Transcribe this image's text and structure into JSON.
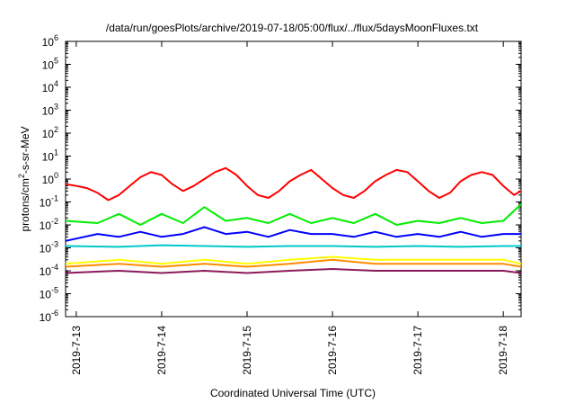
{
  "chart_data": {
    "type": "line",
    "title": "/data/run/goesPlots/archive/2019-07-18/05:00/flux/../flux/5daysMoonFluxes.txt",
    "xlabel": "Coordinated Universal Time (UTC)",
    "ylabel": "protons/cm2-s-sr-MeV",
    "ylabel_parts": {
      "pre": "protons/cm",
      "sup": "2",
      "post": "-s-sr-MeV"
    },
    "yscale": "log",
    "ylim": [
      1e-06,
      1000000.0
    ],
    "xlim": [
      "2019-07-12T21:00",
      "2019-07-18T05:00"
    ],
    "x_ticks": [
      "2019-7-13",
      "2019-7-14",
      "2019-7-15",
      "2019-7-16",
      "2019-7-17",
      "2019-7-18"
    ],
    "y_ticks": [
      {
        "base": "10",
        "exp": "6"
      },
      {
        "base": "10",
        "exp": "5"
      },
      {
        "base": "10",
        "exp": "4"
      },
      {
        "base": "10",
        "exp": "3"
      },
      {
        "base": "10",
        "exp": "2"
      },
      {
        "base": "10",
        "exp": "1"
      },
      {
        "base": "10",
        "exp": "0"
      },
      {
        "base": "10",
        "exp": "-1"
      },
      {
        "base": "10",
        "exp": "-2"
      },
      {
        "base": "10",
        "exp": "-3"
      },
      {
        "base": "10",
        "exp": "-4"
      },
      {
        "base": "10",
        "exp": "-5"
      },
      {
        "base": "10",
        "exp": "-6"
      }
    ],
    "grid": false,
    "legend": "none",
    "series": [
      {
        "color": "#ff0000",
        "x": [
          "2019-07-12T21:00",
          "2019-07-13T00:00",
          "2019-07-13T03:00",
          "2019-07-13T06:00",
          "2019-07-13T09:00",
          "2019-07-13T12:00",
          "2019-07-13T15:00",
          "2019-07-13T18:00",
          "2019-07-13T21:00",
          "2019-07-14T00:00",
          "2019-07-14T03:00",
          "2019-07-14T06:00",
          "2019-07-14T09:00",
          "2019-07-14T12:00",
          "2019-07-14T15:00",
          "2019-07-14T18:00",
          "2019-07-14T21:00",
          "2019-07-15T00:00",
          "2019-07-15T03:00",
          "2019-07-15T06:00",
          "2019-07-15T09:00",
          "2019-07-15T12:00",
          "2019-07-15T15:00",
          "2019-07-15T18:00",
          "2019-07-15T21:00",
          "2019-07-16T00:00",
          "2019-07-16T03:00",
          "2019-07-16T06:00",
          "2019-07-16T09:00",
          "2019-07-16T12:00",
          "2019-07-16T15:00",
          "2019-07-16T18:00",
          "2019-07-16T21:00",
          "2019-07-17T00:00",
          "2019-07-17T03:00",
          "2019-07-17T06:00",
          "2019-07-17T09:00",
          "2019-07-17T12:00",
          "2019-07-17T15:00",
          "2019-07-17T18:00",
          "2019-07-17T21:00",
          "2019-07-18T00:00",
          "2019-07-18T03:00",
          "2019-07-18T05:00"
        ],
        "values": [
          0.6,
          0.5,
          0.4,
          0.25,
          0.12,
          0.2,
          0.5,
          1.2,
          2.0,
          1.5,
          0.6,
          0.3,
          0.5,
          1.0,
          2.0,
          3.0,
          1.5,
          0.5,
          0.2,
          0.15,
          0.3,
          0.8,
          1.5,
          2.5,
          1.0,
          0.4,
          0.2,
          0.15,
          0.3,
          0.8,
          1.5,
          2.5,
          2.0,
          0.8,
          0.3,
          0.15,
          0.25,
          0.8,
          1.5,
          2.0,
          1.5,
          0.5,
          0.2,
          0.3
        ]
      },
      {
        "color": "#00ee00",
        "x": [
          "2019-07-12T21:00",
          "2019-07-13T06:00",
          "2019-07-13T12:00",
          "2019-07-13T18:00",
          "2019-07-14T00:00",
          "2019-07-14T06:00",
          "2019-07-14T12:00",
          "2019-07-14T18:00",
          "2019-07-15T00:00",
          "2019-07-15T06:00",
          "2019-07-15T12:00",
          "2019-07-15T18:00",
          "2019-07-16T00:00",
          "2019-07-16T06:00",
          "2019-07-16T12:00",
          "2019-07-16T18:00",
          "2019-07-17T00:00",
          "2019-07-17T06:00",
          "2019-07-17T12:00",
          "2019-07-17T18:00",
          "2019-07-18T00:00",
          "2019-07-18T05:00"
        ],
        "values": [
          0.015,
          0.012,
          0.03,
          0.01,
          0.03,
          0.012,
          0.06,
          0.015,
          0.02,
          0.012,
          0.03,
          0.012,
          0.02,
          0.012,
          0.03,
          0.01,
          0.015,
          0.012,
          0.02,
          0.012,
          0.015,
          0.08
        ]
      },
      {
        "color": "#0000ff",
        "x": [
          "2019-07-12T21:00",
          "2019-07-13T06:00",
          "2019-07-13T12:00",
          "2019-07-13T18:00",
          "2019-07-14T00:00",
          "2019-07-14T06:00",
          "2019-07-14T12:00",
          "2019-07-14T18:00",
          "2019-07-15T00:00",
          "2019-07-15T06:00",
          "2019-07-15T12:00",
          "2019-07-15T18:00",
          "2019-07-16T00:00",
          "2019-07-16T06:00",
          "2019-07-16T12:00",
          "2019-07-16T18:00",
          "2019-07-17T00:00",
          "2019-07-17T06:00",
          "2019-07-17T12:00",
          "2019-07-17T18:00",
          "2019-07-18T00:00",
          "2019-07-18T05:00"
        ],
        "values": [
          0.002,
          0.004,
          0.003,
          0.005,
          0.003,
          0.004,
          0.008,
          0.004,
          0.005,
          0.003,
          0.006,
          0.004,
          0.004,
          0.003,
          0.005,
          0.003,
          0.004,
          0.003,
          0.005,
          0.003,
          0.004,
          0.004
        ]
      },
      {
        "color": "#00c8c8",
        "x": [
          "2019-07-12T21:00",
          "2019-07-13T12:00",
          "2019-07-14T00:00",
          "2019-07-14T12:00",
          "2019-07-15T00:00",
          "2019-07-15T12:00",
          "2019-07-16T00:00",
          "2019-07-16T12:00",
          "2019-07-17T00:00",
          "2019-07-17T12:00",
          "2019-07-18T00:00",
          "2019-07-18T05:00"
        ],
        "values": [
          0.0012,
          0.0011,
          0.0013,
          0.0012,
          0.0011,
          0.0012,
          0.0012,
          0.0011,
          0.0012,
          0.0011,
          0.0012,
          0.0012
        ]
      },
      {
        "color": "#ffff00",
        "x": [
          "2019-07-12T21:00",
          "2019-07-13T12:00",
          "2019-07-14T00:00",
          "2019-07-14T12:00",
          "2019-07-15T00:00",
          "2019-07-15T12:00",
          "2019-07-16T00:00",
          "2019-07-16T12:00",
          "2019-07-17T00:00",
          "2019-07-17T12:00",
          "2019-07-18T00:00",
          "2019-07-18T05:00"
        ],
        "values": [
          0.0002,
          0.0003,
          0.0002,
          0.0003,
          0.0002,
          0.0003,
          0.0004,
          0.0003,
          0.0003,
          0.0003,
          0.0003,
          0.0002
        ]
      },
      {
        "color": "#ff8c00",
        "x": [
          "2019-07-12T21:00",
          "2019-07-13T12:00",
          "2019-07-14T00:00",
          "2019-07-14T12:00",
          "2019-07-15T00:00",
          "2019-07-15T12:00",
          "2019-07-16T00:00",
          "2019-07-16T12:00",
          "2019-07-17T00:00",
          "2019-07-17T12:00",
          "2019-07-18T00:00",
          "2019-07-18T05:00"
        ],
        "values": [
          0.00015,
          0.0002,
          0.00015,
          0.0002,
          0.00015,
          0.0002,
          0.0003,
          0.0002,
          0.0002,
          0.0002,
          0.0002,
          0.00015
        ]
      },
      {
        "color": "#8b1a5a",
        "x": [
          "2019-07-12T21:00",
          "2019-07-13T12:00",
          "2019-07-14T00:00",
          "2019-07-14T12:00",
          "2019-07-15T00:00",
          "2019-07-15T12:00",
          "2019-07-16T00:00",
          "2019-07-16T12:00",
          "2019-07-17T00:00",
          "2019-07-17T12:00",
          "2019-07-18T00:00",
          "2019-07-18T05:00"
        ],
        "values": [
          8e-05,
          0.0001,
          8e-05,
          0.0001,
          8e-05,
          0.0001,
          0.00012,
          0.0001,
          0.0001,
          0.0001,
          0.0001,
          8e-05
        ]
      }
    ]
  }
}
